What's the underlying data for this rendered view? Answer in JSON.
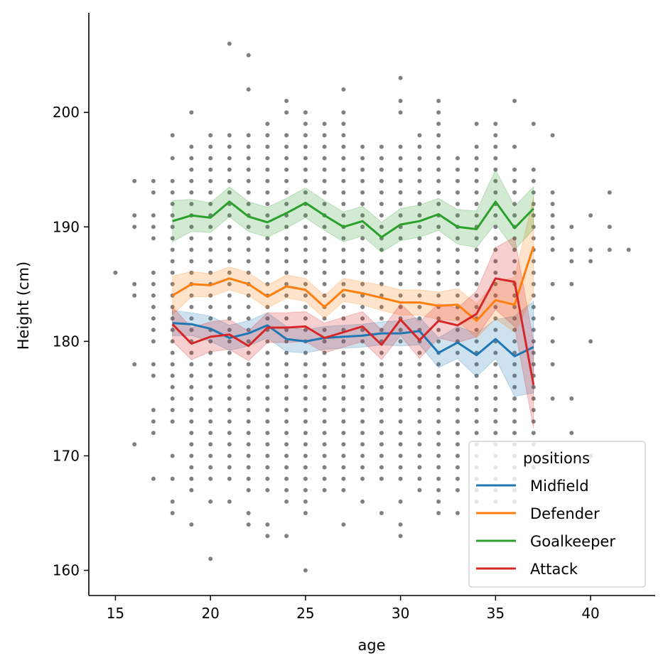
{
  "chart_data": {
    "type": "line",
    "title": "",
    "xlabel": "age",
    "ylabel": "Height (cm)",
    "xlim": [
      13.6,
      43.4
    ],
    "ylim": [
      157.8,
      208.7
    ],
    "x_ticks": [
      15,
      20,
      25,
      30,
      35,
      40
    ],
    "y_ticks": [
      160,
      170,
      180,
      190,
      200
    ],
    "grid": false,
    "legend": {
      "title": "positions",
      "placement": "bottom-right"
    },
    "scatter": {
      "color": "#808080",
      "columns": [
        {
          "x": 15,
          "y": [
            186
          ]
        },
        {
          "x": 16,
          "y": [
            194,
            191,
            190,
            185,
            184,
            178,
            171
          ]
        },
        {
          "x": 17,
          "y": [
            194,
            193,
            191,
            190,
            189,
            186,
            185,
            184,
            183,
            182,
            181,
            180,
            178,
            177,
            174,
            173,
            172,
            168
          ]
        },
        {
          "x": 18,
          "y": [
            198,
            196,
            194,
            193,
            192,
            191,
            190,
            189,
            188,
            187,
            186,
            185,
            184,
            183,
            182,
            181,
            180,
            179,
            178,
            177,
            176,
            175,
            174,
            173,
            170,
            168,
            166,
            165
          ]
        },
        {
          "x": 19,
          "y": [
            200,
            197,
            196,
            195,
            194,
            193,
            192,
            191,
            190,
            189,
            188,
            187,
            186,
            185,
            184,
            183,
            182,
            181,
            180,
            179,
            178,
            177,
            176,
            175,
            174,
            173,
            172,
            171,
            170,
            169,
            168,
            167,
            164
          ]
        },
        {
          "x": 20,
          "y": [
            198,
            197,
            196,
            195,
            194,
            193,
            192,
            191,
            190,
            189,
            188,
            187,
            186,
            185,
            184,
            183,
            182,
            181,
            180,
            179,
            178,
            177,
            176,
            175,
            174,
            173,
            172,
            171,
            170,
            169,
            168,
            166,
            161
          ]
        },
        {
          "x": 21,
          "y": [
            206,
            198,
            197,
            196,
            195,
            194,
            193,
            192,
            191,
            190,
            189,
            188,
            187,
            186,
            185,
            184,
            183,
            182,
            181,
            180,
            179,
            178,
            177,
            176,
            175,
            174,
            173,
            172,
            171,
            170,
            169,
            168,
            166
          ]
        },
        {
          "x": 22,
          "y": [
            205,
            202,
            198,
            197,
            196,
            195,
            194,
            193,
            192,
            191,
            190,
            189,
            188,
            187,
            186,
            185,
            184,
            183,
            182,
            181,
            180,
            179,
            178,
            177,
            176,
            175,
            174,
            173,
            172,
            171,
            170,
            169,
            168,
            167,
            165,
            164
          ]
        },
        {
          "x": 23,
          "y": [
            199,
            198,
            197,
            196,
            195,
            194,
            193,
            192,
            191,
            190,
            189,
            188,
            187,
            186,
            185,
            184,
            183,
            182,
            181,
            180,
            179,
            178,
            177,
            176,
            175,
            174,
            173,
            172,
            171,
            170,
            169,
            168,
            167,
            164,
            163
          ]
        },
        {
          "x": 24,
          "y": [
            201,
            200,
            198,
            197,
            196,
            195,
            194,
            193,
            192,
            191,
            190,
            189,
            188,
            187,
            186,
            185,
            184,
            183,
            182,
            181,
            180,
            179,
            178,
            177,
            176,
            175,
            174,
            173,
            172,
            171,
            170,
            169,
            168,
            167,
            166,
            163
          ]
        },
        {
          "x": 25,
          "y": [
            200,
            199,
            198,
            197,
            196,
            195,
            194,
            193,
            192,
            191,
            190,
            189,
            188,
            187,
            186,
            185,
            184,
            183,
            182,
            181,
            180,
            179,
            178,
            177,
            176,
            175,
            174,
            173,
            172,
            171,
            170,
            169,
            168,
            167,
            166,
            165,
            160
          ]
        },
        {
          "x": 26,
          "y": [
            199,
            198,
            197,
            196,
            195,
            194,
            193,
            192,
            191,
            190,
            189,
            188,
            187,
            186,
            185,
            184,
            183,
            182,
            181,
            180,
            179,
            178,
            177,
            176,
            175,
            174,
            173,
            172,
            171,
            170,
            169,
            168,
            167
          ]
        },
        {
          "x": 27,
          "y": [
            202,
            200,
            199,
            198,
            197,
            196,
            195,
            194,
            193,
            192,
            191,
            190,
            189,
            188,
            187,
            186,
            185,
            184,
            183,
            182,
            181,
            180,
            179,
            178,
            177,
            176,
            175,
            174,
            173,
            172,
            171,
            170,
            169,
            168,
            167,
            164
          ]
        },
        {
          "x": 28,
          "y": [
            197,
            196,
            195,
            194,
            193,
            192,
            191,
            190,
            189,
            188,
            187,
            186,
            185,
            184,
            183,
            182,
            181,
            180,
            179,
            178,
            177,
            176,
            175,
            174,
            173,
            172,
            171,
            170,
            169,
            168,
            166
          ]
        },
        {
          "x": 29,
          "y": [
            197,
            196,
            195,
            194,
            193,
            192,
            191,
            190,
            189,
            188,
            187,
            186,
            185,
            184,
            183,
            182,
            181,
            180,
            179,
            178,
            177,
            176,
            175,
            174,
            173,
            172,
            171,
            170,
            169,
            168,
            165
          ]
        },
        {
          "x": 30,
          "y": [
            203,
            201,
            200,
            197,
            196,
            195,
            194,
            193,
            192,
            191,
            190,
            189,
            188,
            187,
            186,
            185,
            184,
            183,
            182,
            181,
            180,
            179,
            178,
            177,
            176,
            175,
            174,
            173,
            172,
            171,
            170,
            169,
            168,
            166,
            164,
            163
          ]
        },
        {
          "x": 31,
          "y": [
            198,
            197,
            196,
            195,
            194,
            193,
            192,
            191,
            190,
            189,
            188,
            187,
            186,
            185,
            184,
            183,
            182,
            181,
            180,
            179,
            178,
            177,
            176,
            175,
            174,
            173,
            172,
            171,
            170,
            169,
            168,
            167
          ]
        },
        {
          "x": 32,
          "y": [
            201,
            200,
            199,
            198,
            197,
            196,
            195,
            194,
            193,
            192,
            191,
            190,
            189,
            188,
            187,
            186,
            185,
            184,
            183,
            182,
            181,
            180,
            179,
            178,
            177,
            176,
            175,
            174,
            173,
            172,
            171,
            170,
            169,
            168,
            167,
            166,
            165
          ]
        },
        {
          "x": 33,
          "y": [
            196,
            195,
            194,
            193,
            192,
            191,
            190,
            189,
            188,
            187,
            186,
            185,
            184,
            183,
            182,
            181,
            180,
            179,
            178,
            177,
            176,
            175,
            174,
            173,
            172,
            171,
            170,
            169,
            168,
            167,
            165
          ]
        },
        {
          "x": 34,
          "y": [
            199,
            197,
            196,
            195,
            194,
            193,
            192,
            191,
            190,
            189,
            188,
            187,
            186,
            185,
            184,
            183,
            182,
            181,
            180,
            179,
            178,
            177,
            176,
            175,
            174,
            173,
            172,
            171,
            170,
            169,
            168,
            167,
            166
          ]
        },
        {
          "x": 35,
          "y": [
            199,
            198,
            197,
            196,
            195,
            194,
            193,
            192,
            191,
            190,
            189,
            188,
            187,
            186,
            185,
            184,
            183,
            182,
            181,
            180,
            179,
            178,
            177,
            176,
            175,
            174,
            173,
            172,
            171,
            170,
            169,
            168,
            167,
            166
          ]
        },
        {
          "x": 36,
          "y": [
            201,
            197,
            195,
            194,
            193,
            192,
            191,
            190,
            189,
            188,
            187,
            186,
            185,
            184,
            183,
            182,
            181,
            180,
            179,
            178,
            177,
            176,
            175,
            174,
            173,
            172,
            171,
            170,
            169,
            168,
            167,
            166
          ]
        },
        {
          "x": 37,
          "y": [
            199,
            195,
            194,
            193,
            192,
            191,
            190,
            189,
            188,
            187,
            186,
            185,
            184,
            183,
            182,
            181,
            180,
            179,
            178,
            177,
            176,
            175,
            174,
            173,
            172,
            171,
            170,
            169
          ]
        },
        {
          "x": 38,
          "y": [
            198,
            193,
            192,
            191,
            190,
            189,
            188,
            185,
            182,
            180,
            178,
            175
          ]
        },
        {
          "x": 39,
          "y": [
            190,
            188,
            187,
            185,
            175,
            172
          ]
        },
        {
          "x": 40,
          "y": [
            191,
            188,
            187,
            180,
            170
          ]
        },
        {
          "x": 41,
          "y": [
            193,
            190,
            188
          ]
        },
        {
          "x": 42,
          "y": [
            188
          ]
        }
      ]
    },
    "x": [
      18,
      19,
      20,
      21,
      22,
      23,
      24,
      25,
      26,
      27,
      28,
      29,
      30,
      31,
      32,
      33,
      34,
      35,
      36,
      37
    ],
    "series": [
      {
        "name": "Midfield",
        "color": "#1f77b4",
        "values": [
          181.6,
          181.5,
          181.1,
          180.3,
          180.7,
          181.4,
          180.2,
          180.0,
          180.3,
          180.4,
          180.5,
          180.7,
          180.7,
          180.9,
          179.0,
          179.9,
          178.8,
          180.2,
          178.7,
          179.5
        ],
        "ci_low": [
          180.5,
          180.5,
          180.0,
          179.2,
          179.6,
          180.3,
          179.1,
          179.0,
          179.3,
          179.4,
          179.5,
          179.7,
          179.6,
          179.7,
          177.7,
          178.5,
          176.9,
          178.5,
          175.2,
          175.5
        ],
        "ci_high": [
          182.7,
          182.5,
          182.2,
          181.4,
          181.8,
          182.5,
          181.3,
          181.0,
          181.3,
          181.4,
          181.5,
          181.7,
          181.8,
          182.1,
          180.3,
          181.3,
          180.7,
          181.9,
          182.2,
          183.5
        ]
      },
      {
        "name": "Defender",
        "color": "#ff7f0e",
        "values": [
          184.0,
          185.0,
          184.9,
          185.5,
          185.0,
          183.9,
          184.8,
          184.5,
          183.0,
          184.5,
          184.2,
          183.8,
          183.4,
          183.4,
          183.1,
          183.2,
          181.8,
          183.6,
          183.2,
          188.3
        ],
        "ci_low": [
          182.3,
          183.9,
          183.9,
          184.5,
          184.0,
          182.9,
          183.8,
          183.5,
          182.0,
          183.5,
          183.2,
          182.7,
          182.3,
          182.3,
          181.9,
          181.8,
          180.3,
          182.0,
          180.8,
          184.0
        ],
        "ci_high": [
          185.7,
          186.1,
          185.9,
          186.5,
          186.0,
          184.9,
          185.8,
          185.5,
          184.0,
          185.5,
          185.2,
          184.9,
          184.5,
          184.5,
          184.3,
          184.6,
          183.3,
          185.2,
          185.6,
          192.6
        ]
      },
      {
        "name": "Goalkeeper",
        "color": "#2ca02c",
        "values": [
          190.5,
          191.0,
          190.8,
          192.2,
          190.9,
          190.4,
          191.2,
          192.1,
          191.0,
          190.0,
          190.5,
          189.1,
          190.2,
          190.5,
          191.1,
          190.0,
          189.8,
          192.2,
          189.9,
          191.6
        ],
        "ci_low": [
          188.7,
          189.6,
          189.5,
          190.9,
          189.6,
          189.1,
          189.9,
          190.8,
          189.7,
          188.7,
          189.2,
          187.8,
          188.8,
          189.1,
          189.7,
          188.5,
          188.2,
          190.3,
          188.0,
          189.8
        ],
        "ci_high": [
          192.3,
          192.4,
          192.1,
          193.5,
          192.2,
          191.7,
          192.5,
          193.4,
          192.3,
          191.3,
          191.8,
          190.4,
          191.6,
          191.9,
          192.5,
          191.5,
          191.4,
          195.0,
          191.8,
          193.5
        ]
      },
      {
        "name": "Attack",
        "color": "#d62728",
        "values": [
          181.5,
          179.8,
          180.4,
          180.6,
          179.6,
          181.2,
          181.2,
          181.3,
          180.3,
          180.8,
          181.3,
          179.7,
          181.9,
          180.1,
          181.8,
          181.4,
          182.4,
          185.5,
          185.2,
          176.2
        ],
        "ci_low": [
          180.0,
          178.4,
          179.1,
          179.3,
          178.3,
          179.9,
          179.9,
          180.0,
          179.0,
          179.5,
          180.0,
          178.4,
          180.5,
          178.5,
          180.3,
          179.9,
          180.4,
          182.8,
          181.3,
          172.4
        ],
        "ci_high": [
          183.0,
          181.2,
          181.7,
          181.9,
          180.9,
          182.5,
          182.5,
          182.6,
          181.6,
          182.1,
          182.6,
          181.0,
          183.3,
          181.7,
          183.3,
          182.9,
          184.4,
          188.2,
          189.1,
          180.0
        ]
      }
    ]
  }
}
